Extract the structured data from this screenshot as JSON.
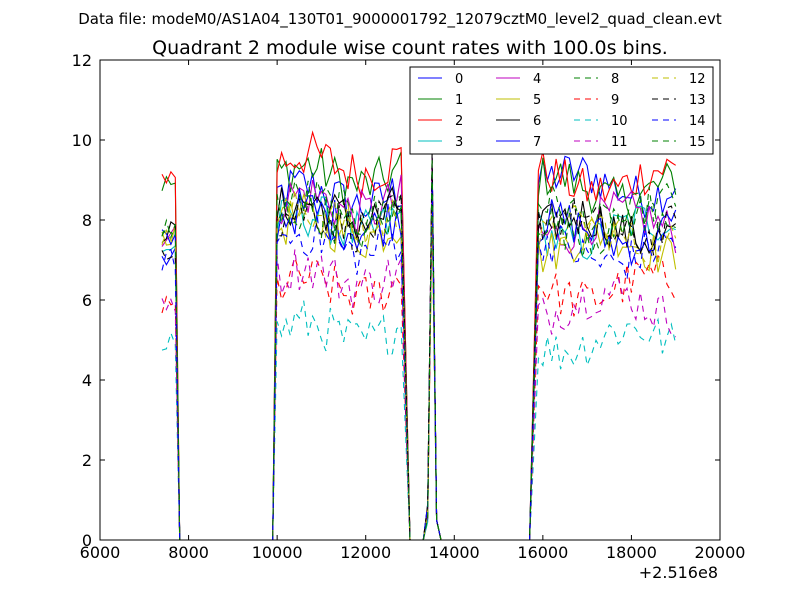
{
  "figure": {
    "suptitle": "Data file: modeM0/AS1A04_130T01_9000001792_12079cztM0_level2_quad_clean.evt"
  },
  "chart_data": {
    "type": "line",
    "title": "Quadrant 2 module wise count rates with 100.0s bins.",
    "xlabel": "",
    "ylabel": "",
    "xlim": [
      6000,
      20000
    ],
    "ylim": [
      0,
      12
    ],
    "xticks": [
      "6000",
      "8000",
      "10000",
      "12000",
      "14000",
      "16000",
      "18000",
      "20000"
    ],
    "yticks": [
      "0",
      "2",
      "4",
      "6",
      "8",
      "10",
      "12"
    ],
    "x_offset_label": "+2.516e8",
    "legend_position": "upper right",
    "legend_columns": 4,
    "segments": [
      {
        "x0": 7400,
        "x1": 7700,
        "n": 4
      },
      {
        "x0": 10000,
        "x1": 12800,
        "n": 29
      },
      {
        "x0": 15900,
        "x1": 19000,
        "n": 32
      }
    ],
    "spike": {
      "x": 13500,
      "peak_range": [
        8.2,
        10.2
      ]
    },
    "zero_ranges": [
      [
        7800,
        9900
      ],
      [
        13000,
        13300
      ],
      [
        13700,
        15700
      ]
    ],
    "series": [
      {
        "name": "0",
        "color": "#0000ff",
        "dash": "solid",
        "levels": [
          7.0,
          8.6,
          8.9
        ]
      },
      {
        "name": "1",
        "color": "#008000",
        "dash": "solid",
        "levels": [
          8.9,
          9.1,
          8.8
        ]
      },
      {
        "name": "2",
        "color": "#ff0000",
        "dash": "solid",
        "levels": [
          9.1,
          9.4,
          9.0
        ]
      },
      {
        "name": "3",
        "color": "#00bfbf",
        "dash": "solid",
        "levels": [
          7.3,
          7.9,
          7.7
        ]
      },
      {
        "name": "4",
        "color": "#bf00bf",
        "dash": "solid",
        "levels": [
          7.6,
          8.4,
          7.9
        ]
      },
      {
        "name": "5",
        "color": "#bfbf00",
        "dash": "solid",
        "levels": [
          7.6,
          7.8,
          7.4
        ]
      },
      {
        "name": "6",
        "color": "#000000",
        "dash": "solid",
        "levels": [
          7.7,
          8.2,
          7.8
        ]
      },
      {
        "name": "7",
        "color": "#0000ff",
        "dash": "solid",
        "levels": [
          7.5,
          8.0,
          7.7
        ]
      },
      {
        "name": "8",
        "color": "#008000",
        "dash": "dashed",
        "levels": [
          7.8,
          8.3,
          8.2
        ]
      },
      {
        "name": "9",
        "color": "#ff0000",
        "dash": "dashed",
        "levels": [
          5.8,
          6.3,
          6.3
        ]
      },
      {
        "name": "10",
        "color": "#00bfbf",
        "dash": "dashed",
        "levels": [
          5.0,
          5.2,
          5.0
        ]
      },
      {
        "name": "11",
        "color": "#bf00bf",
        "dash": "dashed",
        "levels": [
          6.0,
          6.6,
          5.9
        ]
      },
      {
        "name": "12",
        "color": "#bfbf00",
        "dash": "dashed",
        "levels": [
          7.5,
          8.0,
          7.6
        ]
      },
      {
        "name": "13",
        "color": "#000000",
        "dash": "dashed",
        "levels": [
          7.3,
          8.0,
          7.8
        ]
      },
      {
        "name": "14",
        "color": "#0000ff",
        "dash": "dashed",
        "levels": [
          7.0,
          7.4,
          7.2
        ]
      },
      {
        "name": "15",
        "color": "#008000",
        "dash": "dashed",
        "levels": [
          7.6,
          8.0,
          7.9
        ]
      }
    ]
  }
}
